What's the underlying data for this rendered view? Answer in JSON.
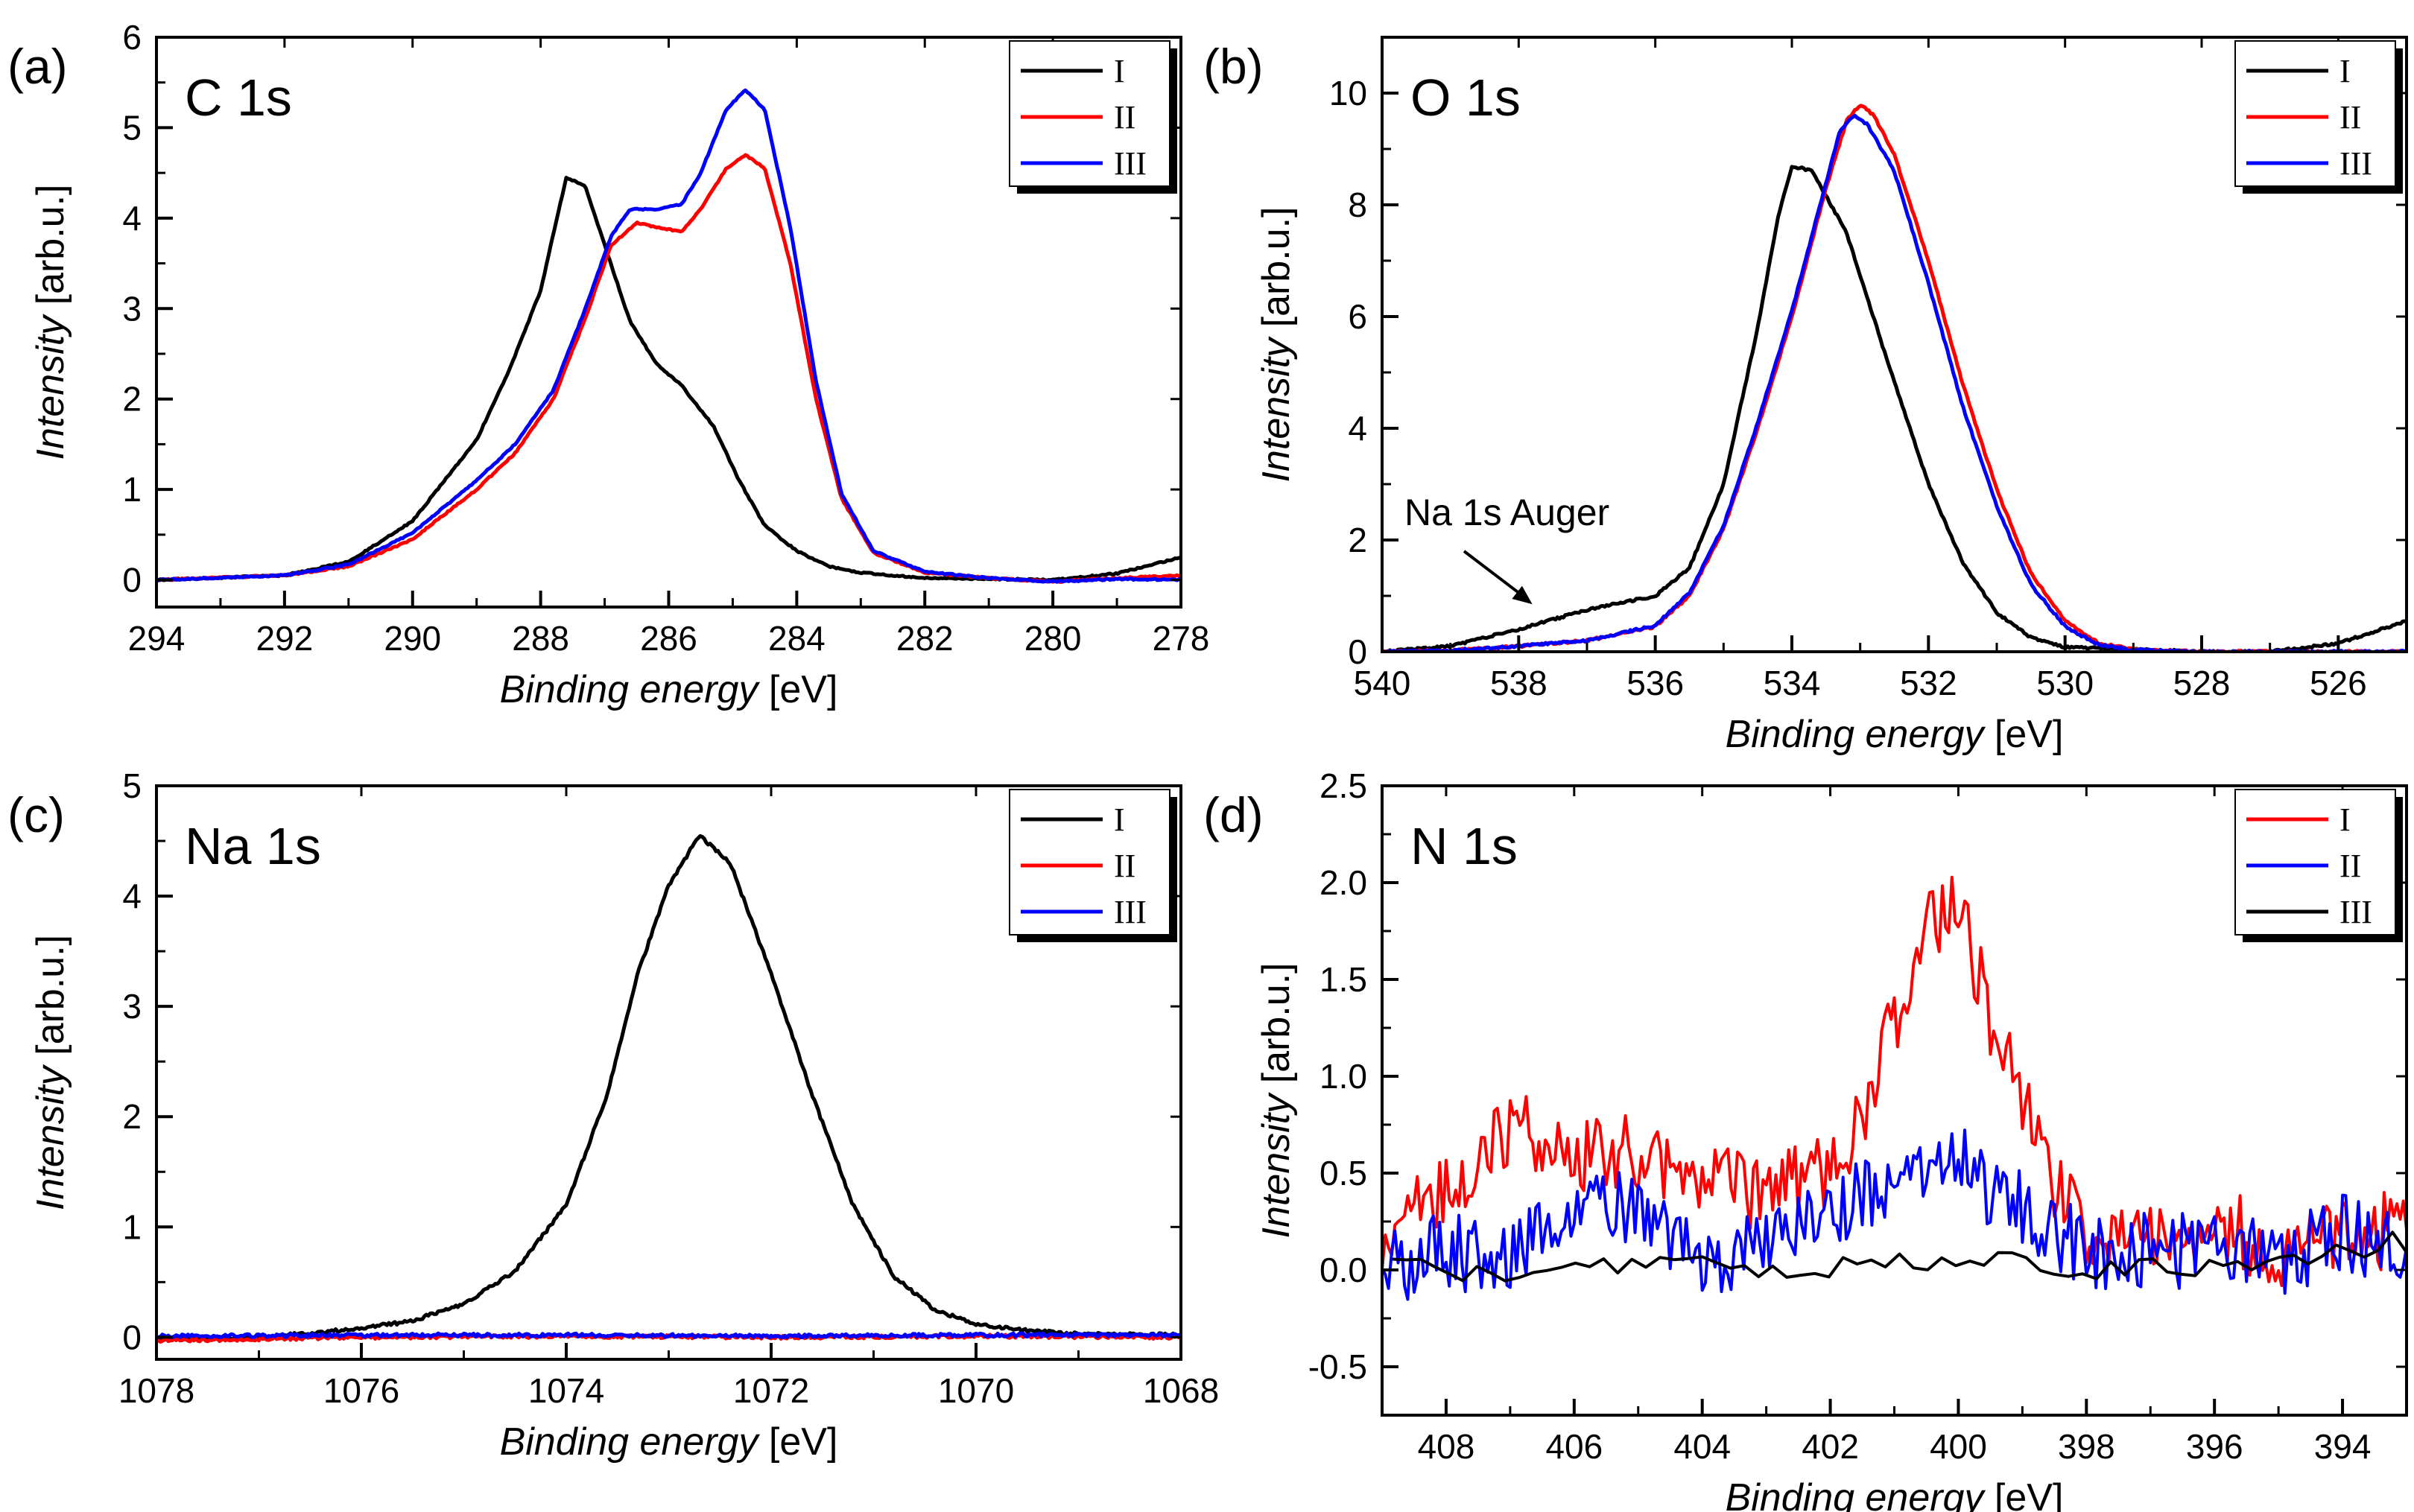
{
  "figure": {
    "xlabel_italic": "Binding energy",
    "xlabel_unit": " [eV]",
    "ylabel_italic": "Intensity",
    "ylabel_unit": " [arb.u.]"
  },
  "chart_data": [
    {
      "panel": "(a)",
      "title": "C 1s",
      "type": "line",
      "xlabel": "Binding energy [eV]",
      "ylabel": "Intensity [arb.u.]",
      "xlim": [
        294,
        278
      ],
      "ylim": [
        -0.3,
        6
      ],
      "xticks": [
        294,
        292,
        290,
        288,
        286,
        284,
        282,
        280,
        278
      ],
      "yticks": [
        0,
        1,
        2,
        3,
        4,
        5,
        6
      ],
      "noise": 0.008,
      "series": [
        {
          "name": "I",
          "color": "#000000",
          "points": [
            [
              294,
              0
            ],
            [
              292,
              0.05
            ],
            [
              291,
              0.2
            ],
            [
              290,
              0.65
            ],
            [
              289,
              1.55
            ],
            [
              288.5,
              2.3
            ],
            [
              288,
              3.2
            ],
            [
              287.6,
              4.45
            ],
            [
              287.3,
              4.35
            ],
            [
              287,
              3.7
            ],
            [
              286.6,
              2.85
            ],
            [
              286.2,
              2.4
            ],
            [
              285.8,
              2.15
            ],
            [
              285.3,
              1.7
            ],
            [
              284.9,
              1.1
            ],
            [
              284.5,
              0.6
            ],
            [
              284,
              0.32
            ],
            [
              283.5,
              0.15
            ],
            [
              283,
              0.08
            ],
            [
              282,
              0.02
            ],
            [
              280,
              0.0
            ],
            [
              279,
              0.07
            ],
            [
              278,
              0.25
            ]
          ]
        },
        {
          "name": "II",
          "color": "#ff0000",
          "points": [
            [
              294,
              0
            ],
            [
              292,
              0.05
            ],
            [
              291,
              0.15
            ],
            [
              290,
              0.45
            ],
            [
              289,
              1.0
            ],
            [
              288.4,
              1.4
            ],
            [
              287.8,
              2.0
            ],
            [
              287.3,
              2.9
            ],
            [
              286.9,
              3.7
            ],
            [
              286.5,
              3.95
            ],
            [
              286.2,
              3.9
            ],
            [
              285.8,
              3.85
            ],
            [
              285.5,
              4.1
            ],
            [
              285.1,
              4.55
            ],
            [
              284.8,
              4.7
            ],
            [
              284.5,
              4.55
            ],
            [
              284.1,
              3.5
            ],
            [
              283.7,
              2.0
            ],
            [
              283.3,
              0.9
            ],
            [
              282.8,
              0.3
            ],
            [
              282,
              0.08
            ],
            [
              281,
              0.02
            ],
            [
              280,
              -0.02
            ],
            [
              279,
              0.02
            ],
            [
              278,
              0.05
            ]
          ]
        },
        {
          "name": "III",
          "color": "#0000ff",
          "points": [
            [
              294,
              0
            ],
            [
              292,
              0.05
            ],
            [
              291,
              0.17
            ],
            [
              290,
              0.52
            ],
            [
              289,
              1.1
            ],
            [
              288.4,
              1.5
            ],
            [
              287.8,
              2.1
            ],
            [
              287.3,
              3.0
            ],
            [
              286.9,
              3.8
            ],
            [
              286.6,
              4.1
            ],
            [
              286.2,
              4.1
            ],
            [
              285.8,
              4.15
            ],
            [
              285.5,
              4.5
            ],
            [
              285.1,
              5.2
            ],
            [
              284.8,
              5.42
            ],
            [
              284.5,
              5.2
            ],
            [
              284.1,
              3.9
            ],
            [
              283.7,
              2.2
            ],
            [
              283.3,
              0.95
            ],
            [
              282.8,
              0.32
            ],
            [
              282,
              0.09
            ],
            [
              281,
              0.02
            ],
            [
              280,
              -0.02
            ],
            [
              279,
              0.01
            ],
            [
              278,
              0.0
            ]
          ]
        }
      ]
    },
    {
      "panel": "(b)",
      "title": "O 1s",
      "type": "line",
      "xlabel": "Binding energy [eV]",
      "ylabel": "Intensity [arb.u.]",
      "xlim": [
        540,
        525
      ],
      "ylim": [
        0,
        11
      ],
      "xticks": [
        540,
        538,
        536,
        534,
        532,
        530,
        528,
        526
      ],
      "yticks": [
        0,
        2,
        4,
        6,
        8,
        10
      ],
      "noise": 0.02,
      "annotation": {
        "text": "Na 1s Auger",
        "arrow_to": [
          537.8,
          0.85
        ]
      },
      "series": [
        {
          "name": "I",
          "color": "#000000",
          "points": [
            [
              540,
              0
            ],
            [
              539,
              0.1
            ],
            [
              538,
              0.4
            ],
            [
              537,
              0.75
            ],
            [
              536,
              1.0
            ],
            [
              535.5,
              1.5
            ],
            [
              535,
              3.0
            ],
            [
              534.5,
              5.8
            ],
            [
              534.2,
              7.8
            ],
            [
              534,
              8.7
            ],
            [
              533.7,
              8.6
            ],
            [
              533.2,
              7.5
            ],
            [
              532.6,
              5.2
            ],
            [
              532,
              3.0
            ],
            [
              531.5,
              1.6
            ],
            [
              531,
              0.7
            ],
            [
              530.5,
              0.25
            ],
            [
              530,
              0.08
            ],
            [
              528,
              0.0
            ],
            [
              527,
              0.0
            ],
            [
              526,
              0.15
            ],
            [
              525,
              0.55
            ]
          ]
        },
        {
          "name": "II",
          "color": "#ff0000",
          "points": [
            [
              540,
              0
            ],
            [
              539,
              0.02
            ],
            [
              538,
              0.1
            ],
            [
              537,
              0.2
            ],
            [
              536,
              0.45
            ],
            [
              535.5,
              1.0
            ],
            [
              535,
              2.2
            ],
            [
              534.5,
              4.0
            ],
            [
              534,
              6.0
            ],
            [
              533.5,
              8.3
            ],
            [
              533.2,
              9.5
            ],
            [
              533,
              9.8
            ],
            [
              532.8,
              9.6
            ],
            [
              532.5,
              8.9
            ],
            [
              532,
              7.0
            ],
            [
              531.5,
              4.8
            ],
            [
              531,
              2.9
            ],
            [
              530.5,
              1.4
            ],
            [
              530,
              0.55
            ],
            [
              529.5,
              0.15
            ],
            [
              529,
              0.04
            ],
            [
              528,
              0.0
            ],
            [
              525,
              0.0
            ]
          ]
        },
        {
          "name": "III",
          "color": "#0000ff",
          "points": [
            [
              540,
              0
            ],
            [
              539,
              0.02
            ],
            [
              538,
              0.1
            ],
            [
              537,
              0.2
            ],
            [
              536,
              0.47
            ],
            [
              535.5,
              1.05
            ],
            [
              535,
              2.25
            ],
            [
              534.5,
              4.1
            ],
            [
              534,
              6.1
            ],
            [
              533.5,
              8.4
            ],
            [
              533.3,
              9.3
            ],
            [
              533.1,
              9.6
            ],
            [
              532.9,
              9.45
            ],
            [
              532.5,
              8.6
            ],
            [
              532,
              6.6
            ],
            [
              531.5,
              4.4
            ],
            [
              531,
              2.6
            ],
            [
              530.5,
              1.2
            ],
            [
              530,
              0.45
            ],
            [
              529.5,
              0.12
            ],
            [
              529,
              0.03
            ],
            [
              528,
              0.0
            ],
            [
              525,
              0.0
            ]
          ]
        }
      ]
    },
    {
      "panel": "(c)",
      "title": "Na 1s",
      "type": "line",
      "xlabel": "Binding energy [eV]",
      "ylabel": "Intensity [arb.u.]",
      "xlim": [
        1078,
        1068
      ],
      "ylim": [
        -0.2,
        5
      ],
      "xticks": [
        1078,
        1076,
        1074,
        1072,
        1070,
        1068
      ],
      "yticks": [
        0,
        1,
        2,
        3,
        4,
        5
      ],
      "noise": 0.015,
      "series": [
        {
          "name": "I",
          "color": "#000000",
          "points": [
            [
              1078,
              -0.02
            ],
            [
              1077,
              0.0
            ],
            [
              1076,
              0.08
            ],
            [
              1075.5,
              0.15
            ],
            [
              1075,
              0.3
            ],
            [
              1074.5,
              0.6
            ],
            [
              1074,
              1.2
            ],
            [
              1073.6,
              2.2
            ],
            [
              1073.3,
              3.3
            ],
            [
              1073,
              4.1
            ],
            [
              1072.7,
              4.55
            ],
            [
              1072.4,
              4.3
            ],
            [
              1072,
              3.3
            ],
            [
              1071.6,
              2.2
            ],
            [
              1071.2,
              1.2
            ],
            [
              1070.8,
              0.55
            ],
            [
              1070.4,
              0.25
            ],
            [
              1070,
              0.12
            ],
            [
              1069.5,
              0.06
            ],
            [
              1069,
              0.03
            ],
            [
              1068,
              0.02
            ]
          ]
        },
        {
          "name": "II",
          "color": "#ff0000",
          "points": [
            [
              1078,
              -0.03
            ],
            [
              1076,
              0.0
            ],
            [
              1074,
              0.01
            ],
            [
              1072,
              0.0
            ],
            [
              1070,
              0.01
            ],
            [
              1068,
              0.0
            ]
          ]
        },
        {
          "name": "III",
          "color": "#0000ff",
          "points": [
            [
              1078,
              0.01
            ],
            [
              1076,
              0.02
            ],
            [
              1074,
              0.02
            ],
            [
              1072,
              0.01
            ],
            [
              1070,
              0.02
            ],
            [
              1068,
              0.02
            ]
          ]
        }
      ]
    },
    {
      "panel": "(d)",
      "title": "N 1s",
      "type": "line",
      "xlabel": "Binding energy [eV]",
      "ylabel": "Intensity [arb.u.]",
      "xlim": [
        409,
        393
      ],
      "ylim": [
        -0.75,
        2.5
      ],
      "xticks": [
        408,
        406,
        404,
        402,
        400,
        398,
        396,
        394
      ],
      "yticks": [
        -0.5,
        0.0,
        0.5,
        1.0,
        1.5,
        2.0,
        2.5
      ],
      "noise": 0.2,
      "series": [
        {
          "name": "I",
          "color": "#ff0000",
          "points": [
            [
              409,
              0.2
            ],
            [
              408,
              0.4
            ],
            [
              407,
              0.75
            ],
            [
              406,
              0.6
            ],
            [
              405,
              0.6
            ],
            [
              404,
              0.45
            ],
            [
              403,
              0.4
            ],
            [
              402,
              0.5
            ],
            [
              401.5,
              0.8
            ],
            [
              401,
              1.3
            ],
            [
              400.5,
              1.8
            ],
            [
              400,
              1.9
            ],
            [
              399.5,
              1.3
            ],
            [
              399,
              0.85
            ],
            [
              398.5,
              0.4
            ],
            [
              398,
              0.2
            ],
            [
              397,
              0.15
            ],
            [
              396,
              0.25
            ],
            [
              395,
              0.1
            ],
            [
              394,
              0.2
            ],
            [
              393,
              0.2
            ]
          ]
        },
        {
          "name": "II",
          "color": "#0000ff",
          "points": [
            [
              409,
              0.0
            ],
            [
              408,
              0.1
            ],
            [
              407,
              0.05
            ],
            [
              406,
              0.3
            ],
            [
              405,
              0.35
            ],
            [
              404,
              0.0
            ],
            [
              403,
              0.15
            ],
            [
              402,
              0.3
            ],
            [
              401,
              0.45
            ],
            [
              400,
              0.55
            ],
            [
              399,
              0.3
            ],
            [
              398,
              0.1
            ],
            [
              397,
              0.1
            ],
            [
              396,
              0.1
            ],
            [
              395,
              0.05
            ],
            [
              394,
              0.2
            ],
            [
              393,
              0.1
            ]
          ]
        },
        {
          "name": "III",
          "color": "#000000",
          "noise": 0.06,
          "points": [
            [
              409,
              0.1
            ],
            [
              408,
              0.0
            ],
            [
              406,
              0.0
            ],
            [
              404,
              0.02
            ],
            [
              402,
              0.0
            ],
            [
              400,
              0.05
            ],
            [
              398,
              0.0
            ],
            [
              396,
              0.0
            ],
            [
              394,
              0.1
            ],
            [
              393,
              0.15
            ]
          ]
        }
      ]
    }
  ]
}
